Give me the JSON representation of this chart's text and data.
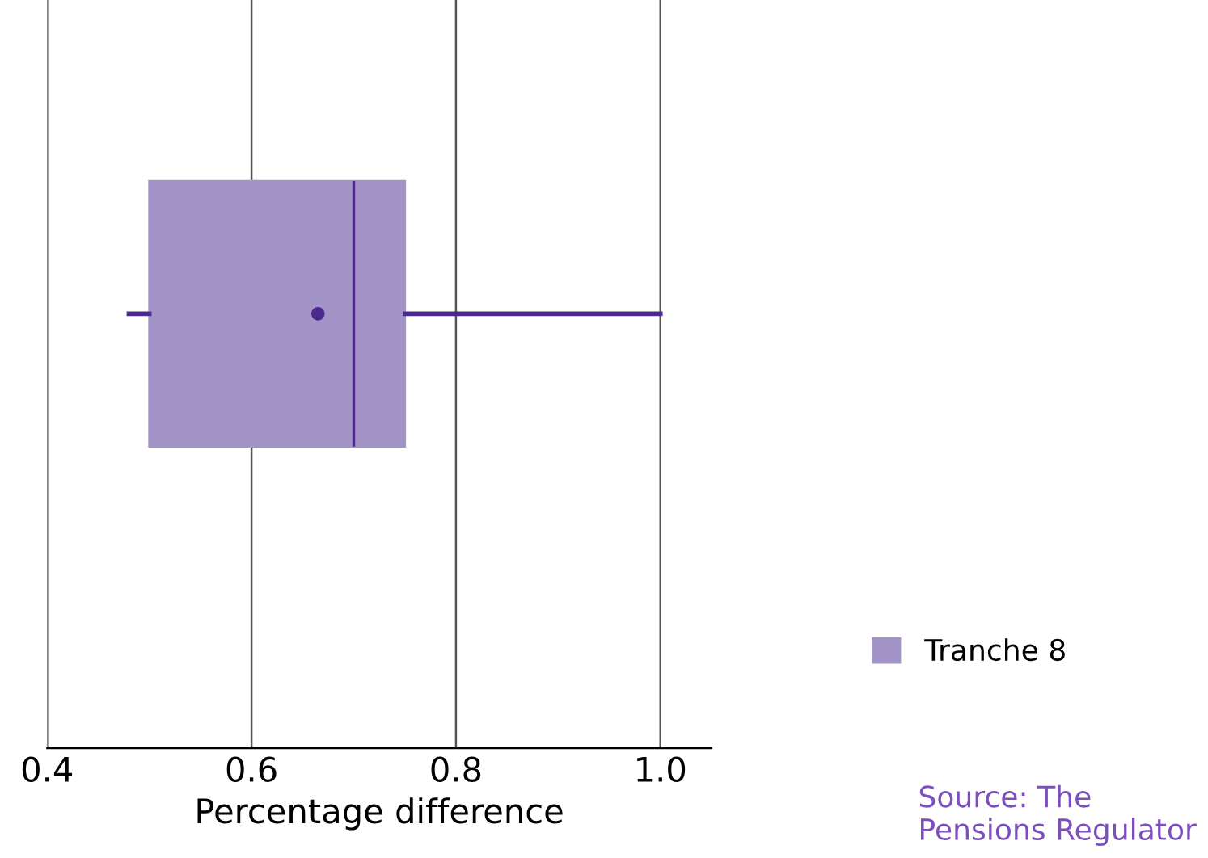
{
  "chart_data": {
    "type": "box",
    "orientation": "horizontal",
    "categories": [
      null
    ],
    "series": [
      {
        "name": "Tranche 8",
        "color": "#a294c6",
        "boxes": [
          {
            "low": 0.48,
            "q1": 0.5,
            "median": 0.7,
            "q3": 0.75,
            "high": 1.0,
            "mean": 0.665
          }
        ]
      }
    ],
    "xlabel": "Percentage difference",
    "xlim": [
      0.4,
      1.05
    ],
    "xticks": [
      {
        "value": 0.4,
        "label": "0.4"
      },
      {
        "value": 0.6,
        "label": "0.6"
      },
      {
        "value": 0.8,
        "label": "0.8"
      },
      {
        "value": 1.0,
        "label": "1.0"
      }
    ],
    "grid": "x",
    "legend": "right",
    "tick_labels": "x",
    "annotations": [
      "Source: The Pensions Regulator"
    ]
  }
}
